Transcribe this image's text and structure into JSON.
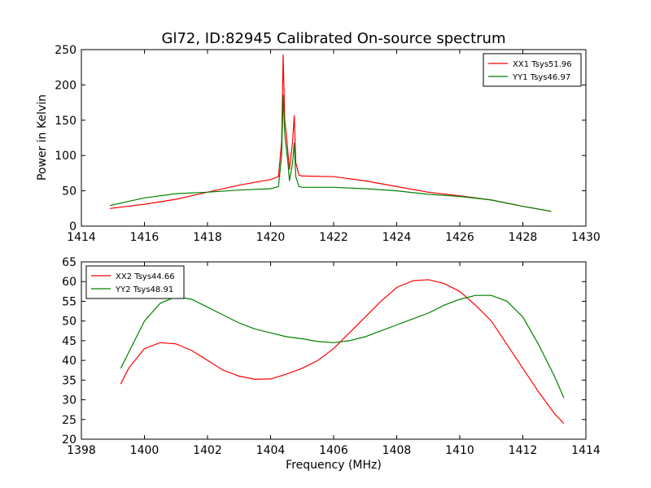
{
  "chart_data": [
    {
      "type": "line",
      "title": "Gl72, ID:82945 Calibrated On-source spectrum",
      "xlabel": "",
      "ylabel": "Power in Kelvin",
      "xlim": [
        1414,
        1430
      ],
      "ylim": [
        0,
        250
      ],
      "xticks": [
        "1414",
        "1416",
        "1418",
        "1420",
        "1422",
        "1424",
        "1426",
        "1428",
        "1430"
      ],
      "yticks": [
        "0",
        "50",
        "100",
        "150",
        "200",
        "250"
      ],
      "grid": false,
      "legend_position": "top-right",
      "series": [
        {
          "name": "XX1 Tsys51.96",
          "color": "#ff0000",
          "points": [
            [
              1414.9,
              25
            ],
            [
              1416,
              31
            ],
            [
              1417,
              38
            ],
            [
              1418,
              48
            ],
            [
              1419,
              58
            ],
            [
              1420,
              66
            ],
            [
              1420.25,
              70
            ],
            [
              1420.35,
              120
            ],
            [
              1420.4,
              243
            ],
            [
              1420.45,
              150
            ],
            [
              1420.5,
              130
            ],
            [
              1420.6,
              80
            ],
            [
              1420.7,
              120
            ],
            [
              1420.75,
              157
            ],
            [
              1420.8,
              90
            ],
            [
              1420.9,
              72
            ],
            [
              1421,
              71
            ],
            [
              1422,
              70
            ],
            [
              1423,
              64
            ],
            [
              1424,
              56
            ],
            [
              1425,
              48
            ],
            [
              1426,
              43
            ],
            [
              1427,
              37
            ],
            [
              1428,
              28
            ],
            [
              1428.9,
              21
            ]
          ]
        },
        {
          "name": "YY1 Tsys46.97",
          "color": "#008000",
          "points": [
            [
              1414.9,
              29
            ],
            [
              1415.5,
              35
            ],
            [
              1416,
              40
            ],
            [
              1417,
              46
            ],
            [
              1418,
              48
            ],
            [
              1419,
              51
            ],
            [
              1420,
              53
            ],
            [
              1420.25,
              56
            ],
            [
              1420.35,
              100
            ],
            [
              1420.4,
              186
            ],
            [
              1420.45,
              130
            ],
            [
              1420.55,
              90
            ],
            [
              1420.6,
              64
            ],
            [
              1420.7,
              90
            ],
            [
              1420.75,
              118
            ],
            [
              1420.8,
              70
            ],
            [
              1420.9,
              56
            ],
            [
              1421,
              55
            ],
            [
              1422,
              55
            ],
            [
              1423,
              53
            ],
            [
              1424,
              50
            ],
            [
              1425,
              45
            ],
            [
              1426,
              42
            ],
            [
              1427,
              37
            ],
            [
              1428,
              28
            ],
            [
              1428.9,
              21
            ]
          ]
        }
      ]
    },
    {
      "type": "line",
      "title": "",
      "xlabel": "Frequency (MHz)",
      "ylabel": "",
      "xlim": [
        1398,
        1414
      ],
      "ylim": [
        20,
        65
      ],
      "xticks": [
        "1398",
        "1400",
        "1402",
        "1404",
        "1406",
        "1408",
        "1410",
        "1412",
        "1414"
      ],
      "yticks": [
        "20",
        "25",
        "30",
        "35",
        "40",
        "45",
        "50",
        "55",
        "60",
        "65"
      ],
      "grid": false,
      "legend_position": "top-left",
      "series": [
        {
          "name": "XX2 Tsys44.66",
          "color": "#ff0000",
          "points": [
            [
              1399.25,
              34
            ],
            [
              1399.5,
              38
            ],
            [
              1400,
              43
            ],
            [
              1400.5,
              44.5
            ],
            [
              1401,
              44.2
            ],
            [
              1401.5,
              42.5
            ],
            [
              1402,
              40
            ],
            [
              1402.5,
              37.5
            ],
            [
              1403,
              36
            ],
            [
              1403.5,
              35.2
            ],
            [
              1404,
              35.3
            ],
            [
              1404.5,
              36.5
            ],
            [
              1405,
              38
            ],
            [
              1405.5,
              40
            ],
            [
              1406,
              43
            ],
            [
              1406.5,
              47
            ],
            [
              1407,
              51
            ],
            [
              1407.5,
              55
            ],
            [
              1408,
              58.5
            ],
            [
              1408.5,
              60.2
            ],
            [
              1409,
              60.5
            ],
            [
              1409.5,
              59.5
            ],
            [
              1410,
              57.5
            ],
            [
              1410.5,
              54
            ],
            [
              1411,
              50
            ],
            [
              1411.5,
              44
            ],
            [
              1412,
              38
            ],
            [
              1412.5,
              32
            ],
            [
              1413,
              26.5
            ],
            [
              1413.3,
              24
            ]
          ]
        },
        {
          "name": "YY2 Tsys48.91",
          "color": "#008000",
          "points": [
            [
              1399.25,
              38
            ],
            [
              1399.5,
              42
            ],
            [
              1400,
              50
            ],
            [
              1400.5,
              54.5
            ],
            [
              1401,
              56.2
            ],
            [
              1401.5,
              55.5
            ],
            [
              1402,
              53.5
            ],
            [
              1402.5,
              51.5
            ],
            [
              1403,
              49.5
            ],
            [
              1403.5,
              48
            ],
            [
              1404,
              47
            ],
            [
              1404.5,
              46
            ],
            [
              1405,
              45.5
            ],
            [
              1405.5,
              44.8
            ],
            [
              1406,
              44.5
            ],
            [
              1406.5,
              45
            ],
            [
              1407,
              46
            ],
            [
              1407.5,
              47.5
            ],
            [
              1408,
              49
            ],
            [
              1408.5,
              50.5
            ],
            [
              1409,
              52
            ],
            [
              1409.5,
              54
            ],
            [
              1410,
              55.5
            ],
            [
              1410.5,
              56.5
            ],
            [
              1411,
              56.5
            ],
            [
              1411.5,
              55
            ],
            [
              1412,
              51
            ],
            [
              1412.5,
              44
            ],
            [
              1413,
              36
            ],
            [
              1413.3,
              30.5
            ]
          ]
        }
      ]
    }
  ]
}
